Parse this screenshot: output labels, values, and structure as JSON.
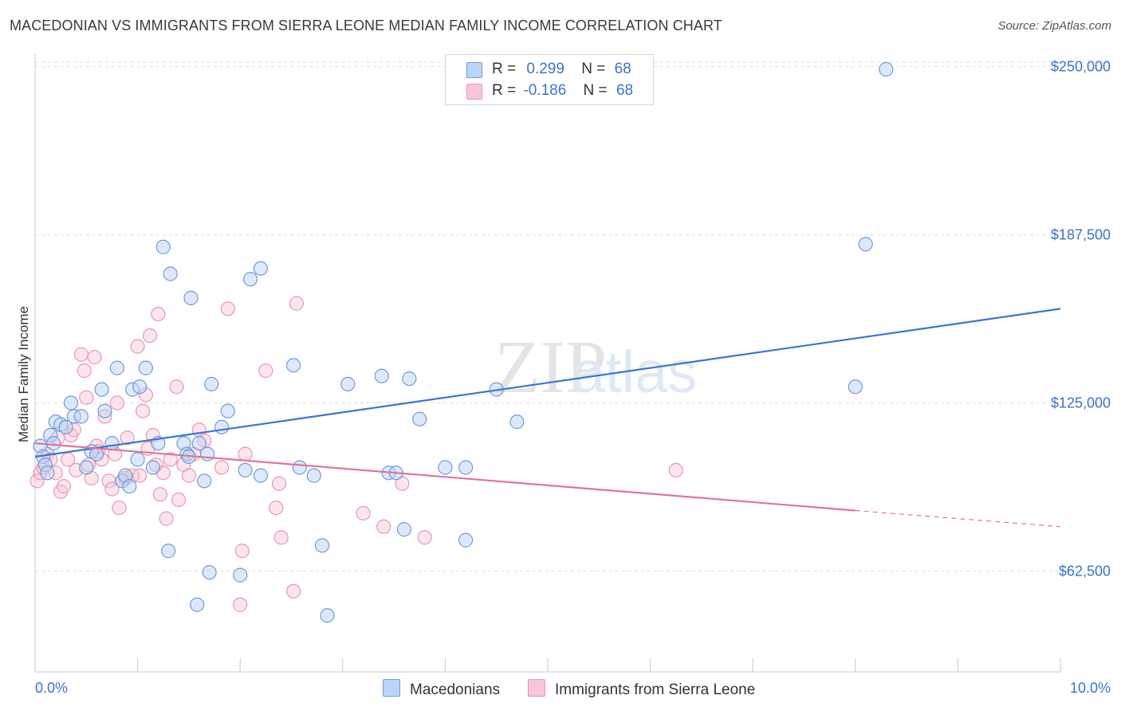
{
  "title": "MACEDONIAN VS IMMIGRANTS FROM SIERRA LEONE MEDIAN FAMILY INCOME CORRELATION CHART",
  "source": "Source: ZipAtlas.com",
  "watermark": {
    "zip": "ZIP",
    "atlas": "atlas"
  },
  "legend": {
    "r_label": "R =",
    "n_label": "N =",
    "rows": [
      {
        "r": "0.299",
        "n": "68"
      },
      {
        "r": "-0.186",
        "n": "68"
      }
    ]
  },
  "bottom_legend": [
    "Macedonians",
    "Immigrants from Sierra Leone"
  ],
  "colors": {
    "blue_fill": "#bcd4f6",
    "blue_stroke": "#6c9bd8",
    "blue_line": "#3a76cf",
    "pink_fill": "#f8c6d6",
    "pink_stroke": "#e896b2",
    "pink_line": "#e0749a",
    "tick_text": "#3b74c9",
    "grid": "#dddddd"
  },
  "chart_data": {
    "type": "scatter",
    "title": "MACEDONIAN VS IMMIGRANTS FROM SIERRA LEONE MEDIAN FAMILY INCOME CORRELATION CHART",
    "xlabel": "",
    "ylabel": "Median Family Income",
    "xlim": [
      0,
      10
    ],
    "ylim": [
      25000,
      257000
    ],
    "x_tick_labels": [
      "0.0%",
      "10.0%"
    ],
    "y_ticks": [
      62500,
      125000,
      187500,
      250000
    ],
    "y_tick_labels": [
      "$62,500",
      "$125,000",
      "$187,500",
      "$250,000"
    ],
    "grid": "horizontal dashed",
    "legend_position": "top-center",
    "series": [
      {
        "name": "Macedonians",
        "r": 0.299,
        "n": 68,
        "trend": {
          "x": [
            0.0,
            10.0
          ],
          "y": [
            105000,
            160000
          ]
        },
        "points": [
          [
            0.05,
            109000
          ],
          [
            0.08,
            105000
          ],
          [
            0.1,
            102000
          ],
          [
            0.12,
            99000
          ],
          [
            0.15,
            113000
          ],
          [
            0.18,
            110000
          ],
          [
            0.2,
            118000
          ],
          [
            0.25,
            117000
          ],
          [
            0.3,
            116000
          ],
          [
            0.35,
            125000
          ],
          [
            0.38,
            120000
          ],
          [
            0.45,
            120000
          ],
          [
            0.5,
            101000
          ],
          [
            0.55,
            107000
          ],
          [
            0.6,
            106000
          ],
          [
            0.65,
            130000
          ],
          [
            0.68,
            122000
          ],
          [
            0.75,
            110000
          ],
          [
            0.8,
            138000
          ],
          [
            0.85,
            96000
          ],
          [
            0.88,
            98000
          ],
          [
            0.92,
            94000
          ],
          [
            0.95,
            130000
          ],
          [
            1.0,
            104000
          ],
          [
            1.02,
            131000
          ],
          [
            1.08,
            138000
          ],
          [
            1.15,
            101000
          ],
          [
            1.2,
            110000
          ],
          [
            1.25,
            183000
          ],
          [
            1.3,
            70000
          ],
          [
            1.32,
            173000
          ],
          [
            1.45,
            110000
          ],
          [
            1.48,
            106000
          ],
          [
            1.5,
            105000
          ],
          [
            1.52,
            164000
          ],
          [
            1.58,
            50000
          ],
          [
            1.6,
            110000
          ],
          [
            1.65,
            96000
          ],
          [
            1.68,
            106000
          ],
          [
            1.7,
            62000
          ],
          [
            1.72,
            132000
          ],
          [
            1.82,
            116000
          ],
          [
            1.88,
            122000
          ],
          [
            2.0,
            61000
          ],
          [
            2.05,
            100000
          ],
          [
            2.1,
            171000
          ],
          [
            2.2,
            175000
          ],
          [
            2.2,
            98000
          ],
          [
            2.52,
            139000
          ],
          [
            2.58,
            101000
          ],
          [
            2.72,
            98000
          ],
          [
            2.8,
            72000
          ],
          [
            2.85,
            46000
          ],
          [
            3.05,
            132000
          ],
          [
            3.38,
            135000
          ],
          [
            3.45,
            99000
          ],
          [
            3.52,
            99000
          ],
          [
            3.6,
            78000
          ],
          [
            3.65,
            134000
          ],
          [
            3.75,
            119000
          ],
          [
            4.0,
            101000
          ],
          [
            4.2,
            101000
          ],
          [
            4.2,
            74000
          ],
          [
            4.5,
            130000
          ],
          [
            4.7,
            118000
          ],
          [
            8.0,
            131000
          ],
          [
            8.1,
            184000
          ],
          [
            8.3,
            249000
          ]
        ]
      },
      {
        "name": "Immigrants from Sierra Leone",
        "r": -0.186,
        "n": 68,
        "trend": {
          "x": [
            0.0,
            8.0
          ],
          "y": [
            110000,
            85000
          ]
        },
        "trend_dashed": {
          "x": [
            8.0,
            10.0
          ],
          "y": [
            85000,
            79000
          ]
        },
        "points": [
          [
            0.02,
            96000
          ],
          [
            0.05,
            99000
          ],
          [
            0.08,
            101000
          ],
          [
            0.12,
            106000
          ],
          [
            0.15,
            104000
          ],
          [
            0.2,
            99000
          ],
          [
            0.22,
            112000
          ],
          [
            0.25,
            92000
          ],
          [
            0.28,
            94000
          ],
          [
            0.32,
            104000
          ],
          [
            0.35,
            113000
          ],
          [
            0.38,
            115000
          ],
          [
            0.4,
            100000
          ],
          [
            0.45,
            143000
          ],
          [
            0.48,
            137000
          ],
          [
            0.5,
            127000
          ],
          [
            0.52,
            102000
          ],
          [
            0.55,
            97000
          ],
          [
            0.58,
            142000
          ],
          [
            0.6,
            109000
          ],
          [
            0.62,
            107000
          ],
          [
            0.65,
            104000
          ],
          [
            0.68,
            120000
          ],
          [
            0.72,
            96000
          ],
          [
            0.75,
            93000
          ],
          [
            0.78,
            106000
          ],
          [
            0.8,
            125000
          ],
          [
            0.82,
            86000
          ],
          [
            0.85,
            96000
          ],
          [
            0.88,
            97000
          ],
          [
            0.9,
            112000
          ],
          [
            0.95,
            98000
          ],
          [
            1.0,
            146000
          ],
          [
            1.02,
            98000
          ],
          [
            1.05,
            122000
          ],
          [
            1.08,
            128000
          ],
          [
            1.1,
            108000
          ],
          [
            1.12,
            150000
          ],
          [
            1.15,
            113000
          ],
          [
            1.18,
            102000
          ],
          [
            1.2,
            158000
          ],
          [
            1.22,
            91000
          ],
          [
            1.25,
            99000
          ],
          [
            1.28,
            82000
          ],
          [
            1.32,
            104000
          ],
          [
            1.38,
            131000
          ],
          [
            1.4,
            89000
          ],
          [
            1.45,
            102000
          ],
          [
            1.5,
            98000
          ],
          [
            1.55,
            106000
          ],
          [
            1.6,
            115000
          ],
          [
            1.65,
            111000
          ],
          [
            1.82,
            101000
          ],
          [
            1.88,
            160000
          ],
          [
            2.0,
            50000
          ],
          [
            2.02,
            70000
          ],
          [
            2.05,
            106000
          ],
          [
            2.25,
            137000
          ],
          [
            2.35,
            86000
          ],
          [
            2.38,
            95000
          ],
          [
            2.4,
            75000
          ],
          [
            2.52,
            55000
          ],
          [
            2.55,
            162000
          ],
          [
            3.2,
            84000
          ],
          [
            3.4,
            79000
          ],
          [
            3.58,
            95000
          ],
          [
            3.8,
            75000
          ],
          [
            6.25,
            100000
          ]
        ]
      }
    ]
  }
}
